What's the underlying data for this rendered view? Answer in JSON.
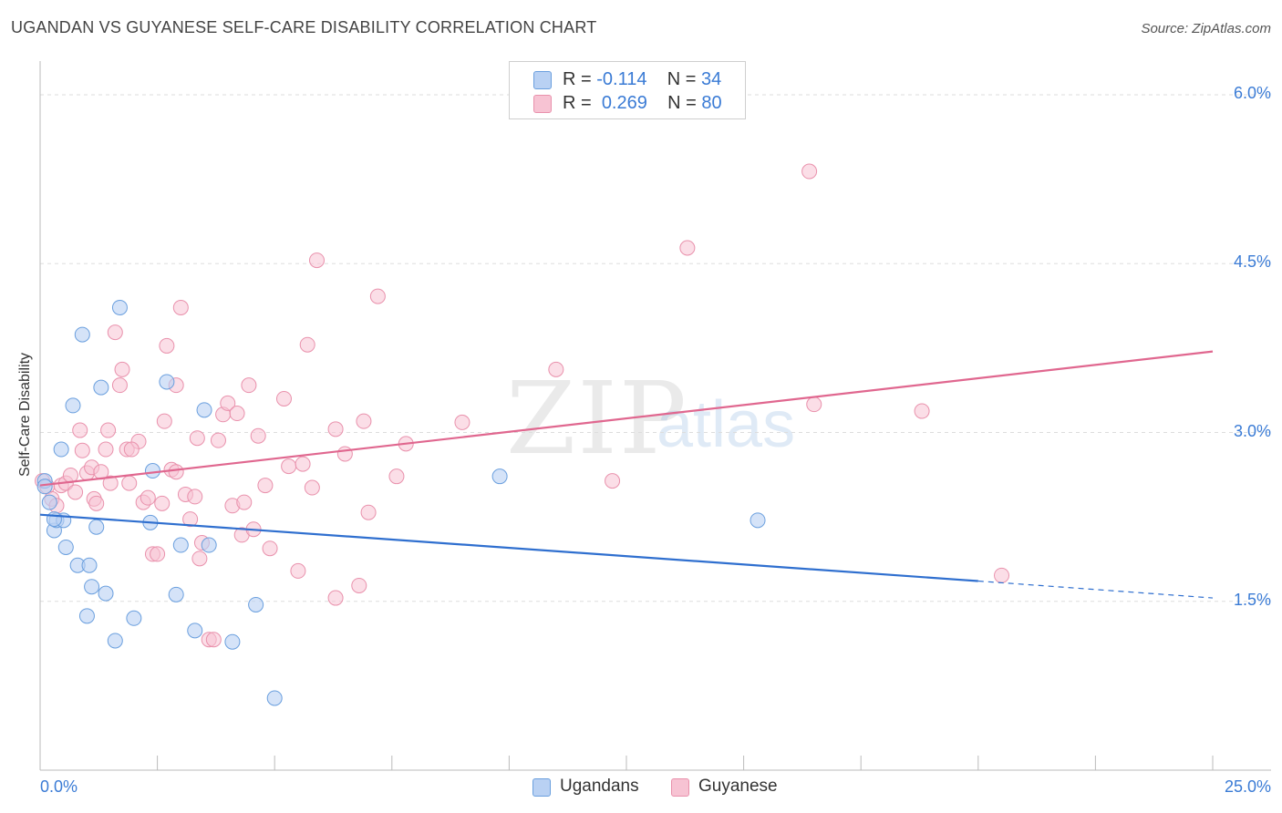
{
  "header": {
    "title": "UGANDAN VS GUYANESE SELF-CARE DISABILITY CORRELATION CHART",
    "source": "Source: ZipAtlas.com"
  },
  "watermark": {
    "zip": "ZIP",
    "atlas": "atlas"
  },
  "legend_top": {
    "rows": [
      {
        "r_label": "R =",
        "r_value": "-0.114",
        "n_label": "N =",
        "n_value": "34"
      },
      {
        "r_label": "R =",
        "r_value": "0.269",
        "n_label": "N =",
        "n_value": "80"
      }
    ]
  },
  "colors": {
    "ugandans_fill": "#b9d1f3",
    "ugandans_stroke": "#6a9fde",
    "ugandans_line": "#2f6fcf",
    "guyanese_fill": "#f7c3d3",
    "guyanese_stroke": "#e991ac",
    "guyanese_line": "#e0678f",
    "tick_text": "#3a7bd5",
    "grid": "#dddddd"
  },
  "chart_data": {
    "type": "scatter",
    "title": "UGANDAN VS GUYANESE SELF-CARE DISABILITY CORRELATION CHART",
    "xlabel": "",
    "ylabel": "Self-Care Disability",
    "xlim": [
      0,
      25
    ],
    "ylim": [
      0,
      6.3
    ],
    "x_tick_labels": [
      "0.0%",
      "25.0%"
    ],
    "y_ticks": [
      1.5,
      3.0,
      4.5,
      6.0
    ],
    "y_tick_labels": [
      "1.5%",
      "3.0%",
      "4.5%",
      "6.0%"
    ],
    "grid": "horizontal dashed",
    "legend_placement": "bottom-center",
    "series": [
      {
        "name": "Ugandans",
        "R": -0.114,
        "N": 34,
        "trend": {
          "x": [
            0,
            20,
            25
          ],
          "y": [
            2.27,
            1.68,
            1.53
          ],
          "solid_until": 20
        },
        "points": [
          [
            0.1,
            2.57
          ],
          [
            0.1,
            2.52
          ],
          [
            0.2,
            2.38
          ],
          [
            0.3,
            2.13
          ],
          [
            0.35,
            2.22
          ],
          [
            0.45,
            2.85
          ],
          [
            0.5,
            2.22
          ],
          [
            0.55,
            1.98
          ],
          [
            0.7,
            3.24
          ],
          [
            0.8,
            1.82
          ],
          [
            0.9,
            3.87
          ],
          [
            1.0,
            1.37
          ],
          [
            1.05,
            1.82
          ],
          [
            1.1,
            1.63
          ],
          [
            1.2,
            2.16
          ],
          [
            1.3,
            3.4
          ],
          [
            1.4,
            1.57
          ],
          [
            1.6,
            1.15
          ],
          [
            1.7,
            4.11
          ],
          [
            2.0,
            1.35
          ],
          [
            2.35,
            2.2
          ],
          [
            2.4,
            2.66
          ],
          [
            2.7,
            3.45
          ],
          [
            2.9,
            1.56
          ],
          [
            3.0,
            2.0
          ],
          [
            3.3,
            1.24
          ],
          [
            3.5,
            3.2
          ],
          [
            3.6,
            2.0
          ],
          [
            4.1,
            1.14
          ],
          [
            4.6,
            1.47
          ],
          [
            5.0,
            0.64
          ],
          [
            9.8,
            2.61
          ],
          [
            15.3,
            2.22
          ],
          [
            0.3,
            2.23
          ]
        ]
      },
      {
        "name": "Guyanese",
        "R": 0.269,
        "N": 80,
        "trend": {
          "x": [
            0,
            25
          ],
          "y": [
            2.53,
            3.72
          ]
        },
        "points": [
          [
            0.05,
            2.57
          ],
          [
            0.15,
            2.52
          ],
          [
            0.25,
            2.41
          ],
          [
            0.35,
            2.35
          ],
          [
            0.45,
            2.53
          ],
          [
            0.55,
            2.55
          ],
          [
            0.65,
            2.62
          ],
          [
            0.75,
            2.47
          ],
          [
            0.85,
            3.02
          ],
          [
            0.9,
            2.84
          ],
          [
            1.0,
            2.64
          ],
          [
            1.1,
            2.69
          ],
          [
            1.15,
            2.41
          ],
          [
            1.2,
            2.37
          ],
          [
            1.3,
            2.65
          ],
          [
            1.4,
            2.85
          ],
          [
            1.45,
            3.02
          ],
          [
            1.5,
            2.55
          ],
          [
            1.6,
            3.89
          ],
          [
            1.7,
            3.42
          ],
          [
            1.75,
            3.56
          ],
          [
            1.85,
            2.85
          ],
          [
            1.9,
            2.55
          ],
          [
            2.1,
            2.92
          ],
          [
            2.2,
            2.38
          ],
          [
            2.3,
            2.42
          ],
          [
            2.4,
            1.92
          ],
          [
            2.5,
            1.92
          ],
          [
            2.6,
            2.37
          ],
          [
            2.65,
            3.1
          ],
          [
            2.7,
            3.77
          ],
          [
            2.8,
            2.67
          ],
          [
            2.9,
            3.42
          ],
          [
            3.0,
            4.11
          ],
          [
            3.1,
            2.45
          ],
          [
            3.2,
            2.23
          ],
          [
            3.3,
            2.43
          ],
          [
            3.35,
            2.95
          ],
          [
            3.4,
            1.88
          ],
          [
            3.45,
            2.02
          ],
          [
            3.6,
            1.16
          ],
          [
            3.7,
            1.16
          ],
          [
            3.8,
            2.93
          ],
          [
            3.9,
            3.16
          ],
          [
            4.0,
            3.26
          ],
          [
            4.1,
            2.35
          ],
          [
            4.2,
            3.17
          ],
          [
            4.3,
            2.09
          ],
          [
            4.35,
            2.38
          ],
          [
            4.45,
            3.42
          ],
          [
            4.55,
            2.14
          ],
          [
            4.65,
            2.97
          ],
          [
            4.8,
            2.53
          ],
          [
            4.9,
            1.97
          ],
          [
            5.2,
            3.3
          ],
          [
            5.3,
            2.7
          ],
          [
            5.5,
            1.77
          ],
          [
            5.6,
            2.72
          ],
          [
            5.7,
            3.78
          ],
          [
            5.8,
            2.51
          ],
          [
            5.9,
            4.53
          ],
          [
            6.3,
            3.03
          ],
          [
            6.5,
            2.81
          ],
          [
            6.8,
            1.64
          ],
          [
            6.9,
            3.1
          ],
          [
            7.0,
            2.29
          ],
          [
            7.2,
            4.21
          ],
          [
            7.6,
            2.61
          ],
          [
            7.8,
            2.9
          ],
          [
            9.0,
            3.09
          ],
          [
            11.0,
            3.56
          ],
          [
            12.2,
            2.57
          ],
          [
            13.8,
            4.64
          ],
          [
            16.4,
            5.32
          ],
          [
            16.5,
            3.25
          ],
          [
            18.8,
            3.19
          ],
          [
            20.5,
            1.73
          ],
          [
            2.9,
            2.65
          ],
          [
            6.3,
            1.53
          ],
          [
            1.95,
            2.85
          ]
        ]
      }
    ]
  },
  "bottom_legend": {
    "items": [
      {
        "label": "Ugandans"
      },
      {
        "label": "Guyanese"
      }
    ]
  }
}
